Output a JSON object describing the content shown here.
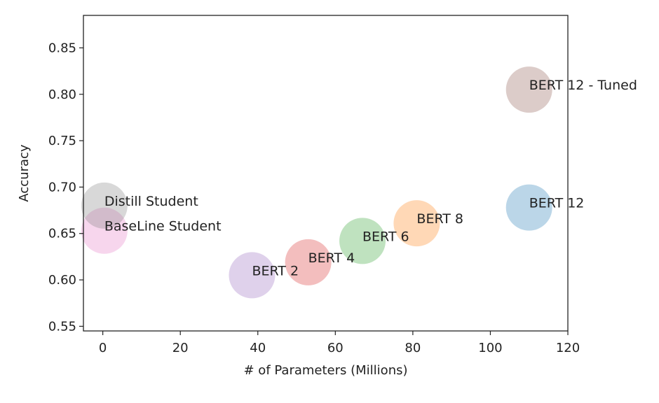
{
  "chart_data": {
    "type": "scatter",
    "title": "",
    "xlabel": "# of Parameters (Millions)",
    "ylabel": "Accuracy",
    "xlim": [
      -5,
      120
    ],
    "ylim": [
      0.545,
      0.885
    ],
    "xticks": [
      0,
      20,
      40,
      60,
      80,
      100,
      120
    ],
    "yticks": [
      0.55,
      0.6,
      0.65,
      0.7,
      0.75,
      0.8,
      0.85
    ],
    "xtick_labels": [
      "0",
      "20",
      "40",
      "60",
      "80",
      "100",
      "120"
    ],
    "ytick_labels": [
      "0.55",
      "0.60",
      "0.65",
      "0.70",
      "0.75",
      "0.80",
      "0.85"
    ],
    "grid": false,
    "legend": "none",
    "points": [
      {
        "label": "BERT 12",
        "x": 110,
        "y": 0.678,
        "color": "#1f77b4"
      },
      {
        "label": "BERT 8",
        "x": 81,
        "y": 0.661,
        "color": "#ff7f0e"
      },
      {
        "label": "BERT 6",
        "x": 67,
        "y": 0.642,
        "color": "#2ca02c"
      },
      {
        "label": "BERT 4",
        "x": 53,
        "y": 0.619,
        "color": "#d62728"
      },
      {
        "label": "BERT 2",
        "x": 38.5,
        "y": 0.605,
        "color": "#9467bd"
      },
      {
        "label": "BERT 12 - Tuned",
        "x": 110,
        "y": 0.805,
        "color": "#8c564b"
      },
      {
        "label": "BaseLine Student",
        "x": 0.4,
        "y": 0.653,
        "color": "#e377c2"
      },
      {
        "label": "Distill Student",
        "x": 0.4,
        "y": 0.68,
        "color": "#7f7f7f"
      }
    ]
  }
}
